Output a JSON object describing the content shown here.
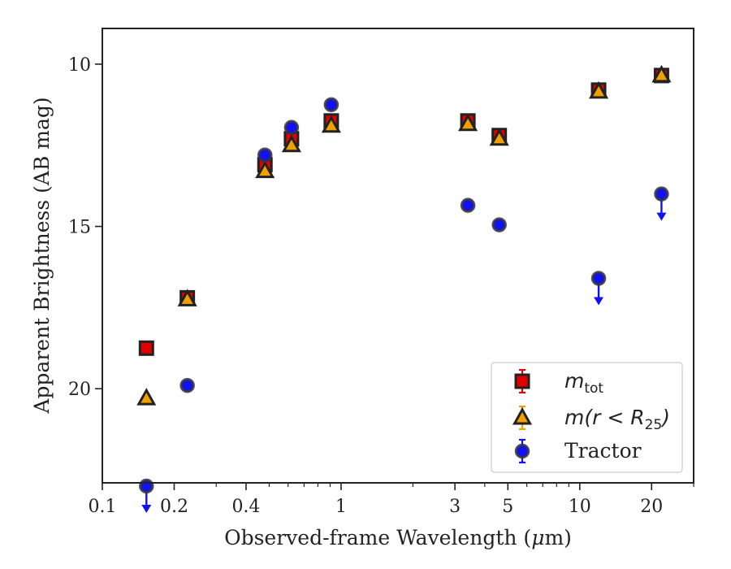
{
  "chart_data": {
    "type": "scatter",
    "xlabel_prefix": "Observed-frame Wavelength (",
    "xlabel_unit_symbol": "μ",
    "xlabel_unit_rest": "m)",
    "ylabel": "Apparent Brightness (AB mag)",
    "x_scale": "log",
    "xlim": [
      0.1,
      30
    ],
    "ylim": [
      22.9,
      8.9
    ],
    "y_inverted": true,
    "grid": false,
    "legend_position": "lower-right",
    "x_ticks": [
      {
        "value": 0.1,
        "label": "0.1"
      },
      {
        "value": 0.2,
        "label": "0.2"
      },
      {
        "value": 0.4,
        "label": "0.4"
      },
      {
        "value": 1,
        "label": "1"
      },
      {
        "value": 3,
        "label": "3"
      },
      {
        "value": 5,
        "label": "5"
      },
      {
        "value": 10,
        "label": "10"
      },
      {
        "value": 20,
        "label": "20"
      }
    ],
    "y_ticks": [
      {
        "value": 10,
        "label": "10"
      },
      {
        "value": 15,
        "label": "15"
      },
      {
        "value": 20,
        "label": "20"
      }
    ],
    "series": [
      {
        "legend_main": "m",
        "legend_sub": "tot",
        "legend_rest": "",
        "marker": "square",
        "fill": "#e00000",
        "edge": "#222222",
        "errcolor": "#e00000",
        "points": [
          {
            "x": 0.153,
            "y": 18.75,
            "err": 0.05
          },
          {
            "x": 0.227,
            "y": 17.2,
            "err": 0.05
          },
          {
            "x": 0.48,
            "y": 13.1,
            "err": 0.2
          },
          {
            "x": 0.62,
            "y": 12.3,
            "err": 0.2
          },
          {
            "x": 0.91,
            "y": 11.75,
            "err": 0.2
          },
          {
            "x": 3.4,
            "y": 11.75,
            "err": 0.15
          },
          {
            "x": 4.6,
            "y": 12.2,
            "err": 0.15
          },
          {
            "x": 12.0,
            "y": 10.8,
            "err": 0.1
          },
          {
            "x": 22.0,
            "y": 10.35,
            "err": 0.1
          }
        ]
      },
      {
        "legend_main": "m",
        "legend_sub": "25",
        "legend_rest": "(r < R",
        "marker": "triangle",
        "fill": "#f0a000",
        "edge": "#222222",
        "errcolor": "#f0a000",
        "points": [
          {
            "x": 0.153,
            "y": 20.3,
            "err": 0.05
          },
          {
            "x": 0.227,
            "y": 17.25,
            "err": 0.05
          },
          {
            "x": 0.48,
            "y": 13.3,
            "err": 0.15
          },
          {
            "x": 0.62,
            "y": 12.5,
            "err": 0.15
          },
          {
            "x": 0.91,
            "y": 11.9,
            "err": 0.15
          },
          {
            "x": 3.4,
            "y": 11.85,
            "err": 0.1
          },
          {
            "x": 4.6,
            "y": 12.3,
            "err": 0.1
          },
          {
            "x": 12.0,
            "y": 10.85,
            "err": 0.1
          },
          {
            "x": 22.0,
            "y": 10.35,
            "err": 0.1
          }
        ]
      },
      {
        "legend_main": "Tractor",
        "legend_sub": "",
        "legend_rest": "",
        "marker": "circle",
        "fill": "#1010ff",
        "edge": "#333344",
        "errcolor": "#1010ff",
        "points": [
          {
            "x": 0.153,
            "y": 23.0,
            "err": 0,
            "upper_limit": true
          },
          {
            "x": 0.227,
            "y": 19.9,
            "err": 0.05
          },
          {
            "x": 0.48,
            "y": 12.8,
            "err": 0.1
          },
          {
            "x": 0.62,
            "y": 11.95,
            "err": 0.1
          },
          {
            "x": 0.91,
            "y": 11.25,
            "err": 0.1
          },
          {
            "x": 3.4,
            "y": 14.35,
            "err": 0.05
          },
          {
            "x": 4.6,
            "y": 14.95,
            "err": 0.05
          },
          {
            "x": 12.0,
            "y": 16.6,
            "err": 0,
            "upper_limit": true
          },
          {
            "x": 22.0,
            "y": 14.0,
            "err": 0,
            "upper_limit": true
          }
        ]
      }
    ]
  }
}
